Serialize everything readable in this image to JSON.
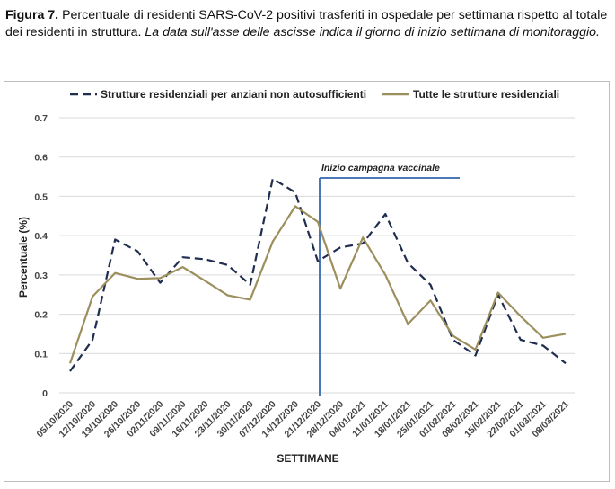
{
  "caption": {
    "label": "Figura 7.",
    "text": " Percentuale di residenti SARS-CoV-2 positivi trasferiti in ospedale per settimana rispetto al totale dei residenti in struttura. ",
    "italic": "La data sull'asse delle ascisse indica il giorno di inizio settimana di monitoraggio."
  },
  "chart_data": {
    "type": "line",
    "ylabel": "Percentuale (%)",
    "xlabel": "SETTIMANE",
    "ylim": [
      0,
      0.7
    ],
    "yticks": [
      0,
      0.1,
      0.2,
      0.3,
      0.4,
      0.5,
      0.6,
      0.7
    ],
    "ytick_labels": [
      "0",
      "0.1",
      "0.2",
      "0.3",
      "0.4",
      "0.5",
      "0.6",
      "0.7"
    ],
    "grid": true,
    "legend_position": "top",
    "categories": [
      "05/10/2020",
      "12/10/2020",
      "19/10/2020",
      "26/10/2020",
      "02/11/2020",
      "09/11/2020",
      "16/11/2020",
      "23/11/2020",
      "30/11/2020",
      "07/12/2020",
      "14/12/2020",
      "21/12/2020",
      "28/12/2020",
      "04/01/2021",
      "11/01/2021",
      "18/01/2021",
      "25/01/2021",
      "01/02/2021",
      "08/02/2021",
      "15/02/2021",
      "22/02/2021",
      "01/03/2021",
      "08/03/2021"
    ],
    "series": [
      {
        "name": "Strutture residenziali per anziani non autosufficienti",
        "style": "dashed",
        "color": "#1f2d4e",
        "values": [
          0.055,
          0.135,
          0.39,
          0.36,
          0.28,
          0.345,
          0.34,
          0.325,
          0.275,
          0.545,
          0.51,
          0.335,
          0.37,
          0.38,
          0.455,
          0.33,
          0.275,
          0.135,
          0.095,
          0.25,
          0.135,
          0.12,
          0.075
        ]
      },
      {
        "name": "Tutte le strutture residenziali",
        "style": "solid",
        "color": "#9c8f5e",
        "values": [
          0.075,
          0.245,
          0.305,
          0.29,
          0.292,
          0.32,
          0.285,
          0.248,
          0.237,
          0.385,
          0.475,
          0.435,
          0.265,
          0.395,
          0.3,
          0.175,
          0.235,
          0.145,
          0.11,
          0.255,
          0.195,
          0.14,
          0.15
        ]
      }
    ],
    "annotation": {
      "text": "Inizio campagna vaccinale",
      "at_category": "21/12/2020",
      "color": "#4a78b8"
    }
  }
}
